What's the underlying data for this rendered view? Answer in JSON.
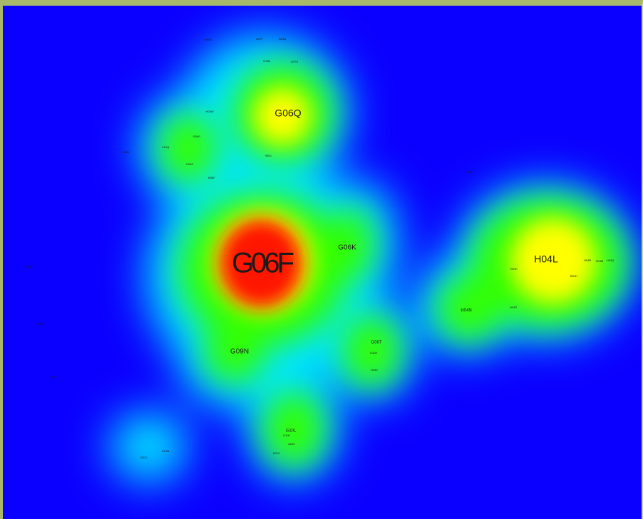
{
  "chart_data": {
    "type": "heatmap",
    "title": "",
    "colors": {
      "background": "#0a00ff",
      "frame": "#a8b86a",
      "low": "#00e5ff",
      "mid": "#33ff00",
      "high": "#ffff00",
      "peak": "#ff1800"
    },
    "labels": [
      {
        "text": "G06F",
        "size": "xl"
      },
      {
        "text": "G06Q",
        "size": "m"
      },
      {
        "text": "H04L",
        "size": "m"
      },
      {
        "text": "G06K",
        "size": "s"
      },
      {
        "text": "G09N",
        "size": "s"
      },
      {
        "text": "G06T",
        "size": "xs"
      },
      {
        "text": "H04N",
        "size": "xs"
      },
      {
        "text": "G10L",
        "size": "xs"
      },
      {
        "text": "B01J",
        "size": "xxs"
      },
      {
        "text": "B01D",
        "size": "xxs"
      },
      {
        "text": "B01F",
        "size": "xxs"
      },
      {
        "text": "A61K",
        "size": "xxs"
      },
      {
        "text": "B01C",
        "size": "xxs"
      },
      {
        "text": "G01C",
        "size": "xxs"
      },
      {
        "text": "G01N",
        "size": "xxs"
      },
      {
        "text": "C40B",
        "size": "xxs"
      },
      {
        "text": "C12Q",
        "size": "xxs"
      },
      {
        "text": "G06G",
        "size": "xxs"
      },
      {
        "text": "G09G",
        "size": "xxs"
      },
      {
        "text": "B08F",
        "size": "xxs"
      },
      {
        "text": "H04W",
        "size": "xxs"
      },
      {
        "text": "B01L",
        "size": "xxs"
      },
      {
        "text": "B01K",
        "size": "xxs"
      },
      {
        "text": "B01H",
        "size": "xxs"
      },
      {
        "text": "H04B",
        "size": "xxs"
      },
      {
        "text": "H04M",
        "size": "xxs"
      },
      {
        "text": "H04Q",
        "size": "xxs"
      },
      {
        "text": "H04J",
        "size": "xxs"
      },
      {
        "text": "H04K",
        "size": "xxs"
      },
      {
        "text": "H04R",
        "size": "xxs"
      },
      {
        "text": "H04S",
        "size": "xxs"
      },
      {
        "text": "G07F",
        "size": "xxs"
      },
      {
        "text": "B01B",
        "size": "xxs"
      },
      {
        "text": "G11B",
        "size": "xxs"
      },
      {
        "text": "G07G",
        "size": "xxs"
      },
      {
        "text": "G10H",
        "size": "xxs"
      },
      {
        "text": "G10K",
        "size": "xxs"
      }
    ]
  }
}
